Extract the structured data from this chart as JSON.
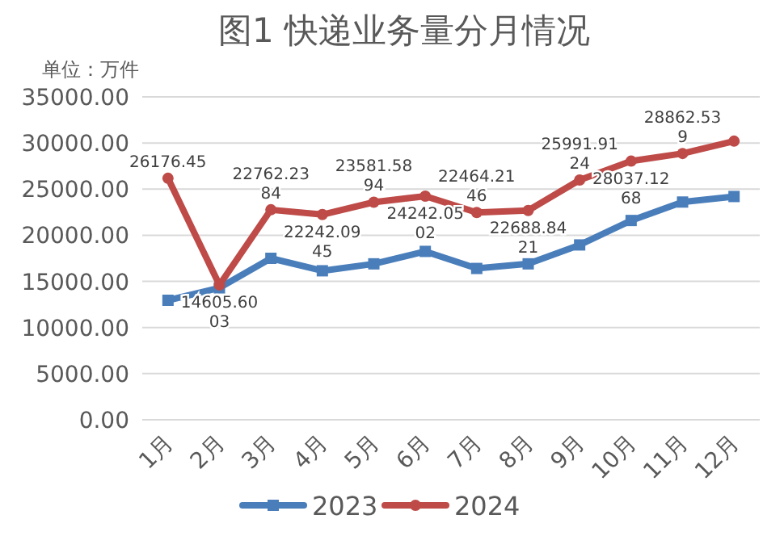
{
  "chart_data": {
    "type": "line",
    "title": "图1  快递业务量分月情况",
    "annotations": [
      "单位：万件"
    ],
    "categories": [
      "1月",
      "2月",
      "3月",
      "4月",
      "5月",
      "6月",
      "7月",
      "8月",
      "9月",
      "10月",
      "11月",
      "12月"
    ],
    "series": [
      {
        "name": "2023",
        "color": "#4a7ebb",
        "marker": "square",
        "values": [
          12950,
          14300,
          17500,
          16150,
          16900,
          18250,
          16400,
          16900,
          18950,
          21600,
          23600,
          24200
        ]
      },
      {
        "name": "2024",
        "color": "#be4b48",
        "marker": "circle",
        "values": [
          26176.45,
          14605.6003,
          22762.2384,
          22242.0945,
          23581.5894,
          24242.0502,
          22464.2146,
          22688.8421,
          25991.9124,
          28037.1268,
          28862.539,
          30200
        ],
        "value_labels": [
          "26176.45",
          "14605.6003",
          "22762.2384",
          "22242.0945",
          "23581.5894",
          "24242.0502",
          "22464.2146",
          "22688.8421",
          "25991.9124",
          "28037.1268",
          "28862.539",
          null
        ]
      }
    ],
    "ylim": [
      0,
      35000
    ],
    "yticks": [
      {
        "value": 0,
        "label": "0.00"
      },
      {
        "value": 5000,
        "label": "5000.00"
      },
      {
        "value": 10000,
        "label": "10000.00"
      },
      {
        "value": 15000,
        "label": "15000.00"
      },
      {
        "value": 20000,
        "label": "20000.00"
      },
      {
        "value": 25000,
        "label": "25000.00"
      },
      {
        "value": 30000,
        "label": "30000.00"
      },
      {
        "value": 35000,
        "label": "35000.00"
      }
    ],
    "grid": "y",
    "legend": "bottom",
    "line_style": "solid"
  }
}
